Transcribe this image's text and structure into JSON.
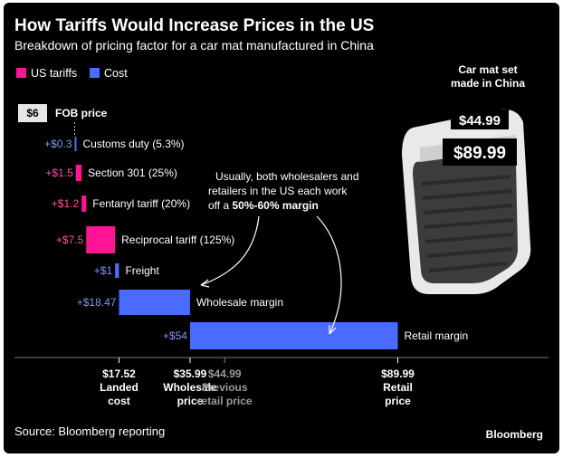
{
  "title": "How Tariffs Would Increase Prices in the US",
  "subtitle": "Breakdown of pricing factor for a car mat manufactured in China",
  "legend": [
    {
      "label": "US tariffs",
      "color": "#ff1493"
    },
    {
      "label": "Cost",
      "color": "#4a6bff"
    }
  ],
  "colors": {
    "tariff": "#ff1493",
    "cost": "#4a6bff",
    "fob": "#e6e6e6",
    "background": "#000000"
  },
  "chart_data": {
    "type": "bar",
    "subtype": "waterfall",
    "title": "How Tariffs Would Increase Prices in the US",
    "xlim": [
      0,
      89.99
    ],
    "steps": [
      {
        "name": "FOB price",
        "value_label": "$6",
        "start": 0,
        "end": 6,
        "kind": "base"
      },
      {
        "name": "Customs duty (5.3%)",
        "value_label": "+$0.3",
        "start": 6,
        "end": 6.3,
        "kind": "cost"
      },
      {
        "name": "Section 301 (25%)",
        "value_label": "+$1.5",
        "start": 6.3,
        "end": 7.8,
        "kind": "tariff"
      },
      {
        "name": "Fentanyl tariff (20%)",
        "value_label": "+$1.2",
        "start": 7.8,
        "end": 9.0,
        "kind": "tariff"
      },
      {
        "name": "Reciprocal tariff (125%)",
        "value_label": "+$7.5",
        "start": 9.0,
        "end": 16.5,
        "kind": "tariff"
      },
      {
        "name": "Freight",
        "value_label": "+$1",
        "start": 16.5,
        "end": 17.52,
        "kind": "cost"
      },
      {
        "name": "Wholesale margin",
        "value_label": "+$18.47",
        "start": 17.52,
        "end": 35.99,
        "kind": "cost"
      },
      {
        "name": "Retail margin",
        "value_label": "+$54",
        "start": 35.99,
        "end": 89.99,
        "kind": "cost"
      }
    ],
    "axis_marks": [
      {
        "value": 17.52,
        "label": "$17.52",
        "caption": [
          "Landed",
          "cost"
        ],
        "dim": false
      },
      {
        "value": 35.99,
        "label": "$35.99",
        "caption": [
          "Wholesale",
          "price"
        ],
        "dim": false
      },
      {
        "value": 44.99,
        "label": "$44.99",
        "caption": [
          "Previous",
          "retail price"
        ],
        "dim": true
      },
      {
        "value": 89.99,
        "label": "$89.99",
        "caption": [
          "Retail",
          "price"
        ],
        "dim": false
      }
    ],
    "annotation": {
      "lines": [
        "Usually, both wholesalers and",
        "retailers in the US each work"
      ],
      "last_line_prefix": "off a ",
      "last_line_bold": "50%-60% margin"
    }
  },
  "product": {
    "title_lines": [
      "Car mat set",
      "made in China"
    ],
    "old_price": "$44.99",
    "new_price": "$89.99",
    "icon": "car-mat-image"
  },
  "footer": {
    "source": "Source: Bloomberg reporting",
    "brand": "Bloomberg"
  }
}
